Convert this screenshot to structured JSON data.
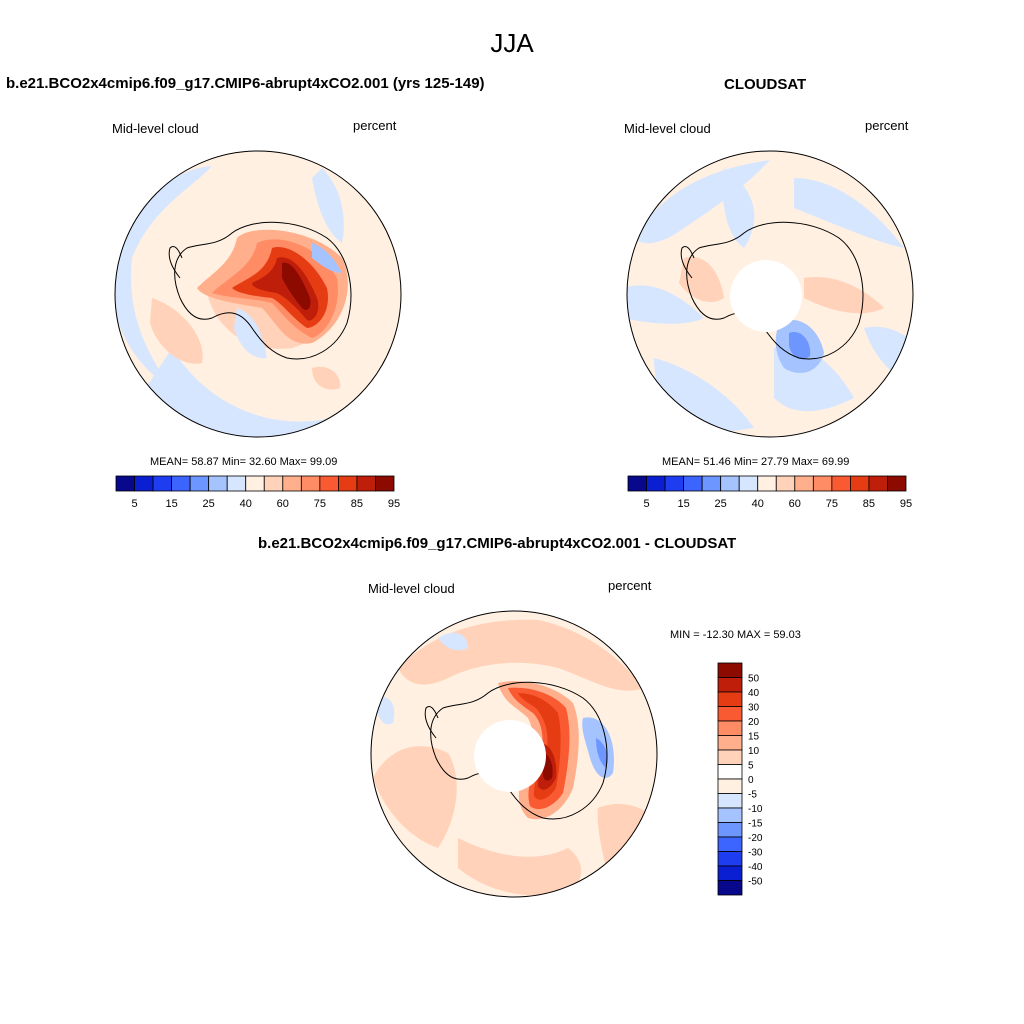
{
  "figure": {
    "season": "JJA"
  },
  "panels": [
    {
      "title": "b.e21.BCO2x4cmip6.f09_g17.CMIP6-abrupt4xCO2.001 (yrs 125-149)",
      "variable": "Mid-level cloud",
      "units": "percent",
      "stats": "MEAN=  58.87  Min=  32.60  Max=  99.09",
      "colorbar_labels": [
        "5",
        "15",
        "25",
        "40",
        "60",
        "75",
        "85",
        "95"
      ]
    },
    {
      "title": "CLOUDSAT",
      "variable": "Mid-level cloud",
      "units": "percent",
      "stats": "MEAN=  51.46  Min=  27.79  Max=  69.99",
      "colorbar_labels": [
        "5",
        "15",
        "25",
        "40",
        "60",
        "75",
        "85",
        "95"
      ]
    },
    {
      "title": "b.e21.BCO2x4cmip6.f09_g17.CMIP6-abrupt4xCO2.001 - CLOUDSAT",
      "variable": "Mid-level cloud",
      "units": "percent",
      "stats": "MIN = -12.30 MAX =  59.03",
      "colorbar_labels": [
        "50",
        "40",
        "30",
        "20",
        "15",
        "10",
        "5",
        "0",
        "-5",
        "-10",
        "-15",
        "-20",
        "-30",
        "-40",
        "-50"
      ]
    }
  ],
  "colors": {
    "abs_scale": [
      "#08088c",
      "#0a1ed2",
      "#1e3cf0",
      "#3c64ff",
      "#6e96ff",
      "#a5c3ff",
      "#d7e6ff",
      "#fff0e1",
      "#ffd2b9",
      "#ffaf8c",
      "#ff8c64",
      "#fa5a32",
      "#e63c14",
      "#be1e0a",
      "#8c0a00"
    ],
    "diff_scale": [
      "#8c0a00",
      "#be1e0a",
      "#e63c14",
      "#fa5a32",
      "#ff8c64",
      "#ffaf8c",
      "#ffd2b9",
      "#fff0e1",
      "#d7e6ff",
      "#a5c3ff",
      "#6e96ff",
      "#3c64ff",
      "#1e3cf0",
      "#0a1ed2",
      "#08088c"
    ]
  }
}
